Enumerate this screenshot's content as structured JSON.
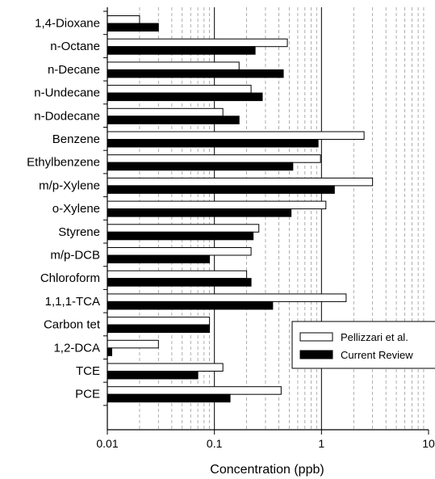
{
  "chart_data": {
    "type": "bar",
    "orientation": "horizontal",
    "x_scale": "log",
    "xlim": [
      0.01,
      10
    ],
    "xlabel": "Concentration (ppb)",
    "grid": "vertical dashed minor, solid major",
    "legend_position": "right, lower-middle",
    "categories": [
      "1,4-Dioxane",
      "n-Octane",
      "n-Decane",
      "n-Undecane",
      "n-Dodecane",
      "Benzene",
      "Ethylbenzene",
      "m/p-Xylene",
      "o-Xylene",
      "Styrene",
      "m/p-DCB",
      "Chloroform",
      "1,1,1-TCA",
      "Carbon tet",
      "1,2-DCA",
      "TCE",
      "PCE"
    ],
    "series": [
      {
        "name": "Pellizzari et al.",
        "color": "#ffffff",
        "values": [
          0.02,
          0.48,
          0.17,
          0.22,
          0.12,
          2.5,
          0.98,
          3.0,
          1.1,
          0.26,
          0.22,
          0.2,
          1.7,
          0.09,
          0.03,
          0.12,
          0.42
        ]
      },
      {
        "name": "Current Review",
        "color": "#000000",
        "values": [
          0.03,
          0.24,
          0.44,
          0.28,
          0.17,
          0.93,
          0.54,
          1.32,
          0.52,
          0.23,
          0.09,
          0.22,
          0.35,
          0.09,
          0.011,
          0.07,
          0.14
        ]
      }
    ],
    "x_ticks": [
      "0.01",
      "0.1",
      "1",
      "10"
    ]
  }
}
